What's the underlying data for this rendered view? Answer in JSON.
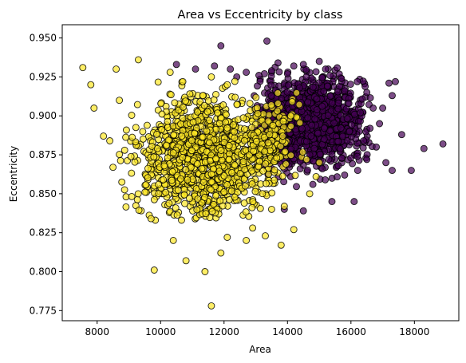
{
  "chart_data": {
    "type": "scatter",
    "title": "Area vs Eccentricity by class",
    "xlabel": "Area",
    "ylabel": "Eccentricity",
    "xlim": [
      6900,
      19400
    ],
    "ylim": [
      0.7685,
      0.9585
    ],
    "xticks": [
      8000,
      10000,
      12000,
      14000,
      16000,
      18000
    ],
    "yticks": [
      0.775,
      0.8,
      0.825,
      0.85,
      0.875,
      0.9,
      0.925,
      0.95
    ],
    "grid": false,
    "legend": "none",
    "series": [
      {
        "color": "#440154",
        "edge_color": "#000000",
        "opacity": 0.7,
        "draw_order": 1,
        "points": [
          [
            13350,
            0.948
          ],
          [
            11900,
            0.945
          ],
          [
            13700,
            0.934
          ],
          [
            14500,
            0.933
          ],
          [
            15000,
            0.935
          ],
          [
            17200,
            0.921
          ],
          [
            17400,
            0.922
          ],
          [
            17300,
            0.913
          ],
          [
            17600,
            0.888
          ],
          [
            17100,
            0.87
          ],
          [
            17300,
            0.865
          ],
          [
            17900,
            0.865
          ],
          [
            18300,
            0.879
          ],
          [
            18900,
            0.882
          ],
          [
            16100,
            0.845
          ],
          [
            15400,
            0.845
          ],
          [
            14500,
            0.839
          ],
          [
            13900,
            0.84
          ],
          [
            15800,
            0.862
          ],
          [
            16400,
            0.884
          ],
          [
            16700,
            0.905
          ],
          [
            16500,
            0.915
          ],
          [
            16200,
            0.922
          ],
          [
            15700,
            0.924
          ],
          [
            15200,
            0.93
          ],
          [
            14200,
            0.932
          ],
          [
            14000,
            0.927
          ],
          [
            13500,
            0.929
          ],
          [
            13100,
            0.926
          ],
          [
            12700,
            0.928
          ],
          [
            12400,
            0.925
          ],
          [
            12200,
            0.93
          ],
          [
            11700,
            0.932
          ],
          [
            11100,
            0.93
          ],
          [
            10500,
            0.933
          ],
          [
            13900,
            0.866
          ],
          [
            14100,
            0.861
          ],
          [
            14400,
            0.866
          ],
          [
            14800,
            0.856
          ],
          [
            15100,
            0.866
          ],
          [
            15600,
            0.868
          ],
          [
            15300,
            0.872
          ],
          [
            14700,
            0.875
          ],
          [
            16900,
            0.895
          ],
          [
            17000,
            0.905
          ],
          [
            16600,
            0.892
          ],
          [
            16300,
            0.902
          ],
          [
            16800,
            0.88
          ],
          [
            16500,
            0.872
          ],
          [
            16200,
            0.874
          ]
        ]
      },
      {
        "color": "#fde725",
        "edge_color": "#000000",
        "opacity": 0.7,
        "draw_order": 2,
        "points": [
          [
            7550,
            0.931
          ],
          [
            7800,
            0.92
          ],
          [
            7900,
            0.905
          ],
          [
            8200,
            0.887
          ],
          [
            8400,
            0.884
          ],
          [
            8500,
            0.867
          ],
          [
            8600,
            0.93
          ],
          [
            8700,
            0.91
          ],
          [
            9300,
            0.936
          ],
          [
            9700,
            0.834
          ],
          [
            9800,
            0.801
          ],
          [
            10400,
            0.82
          ],
          [
            10800,
            0.807
          ],
          [
            11400,
            0.8
          ],
          [
            11600,
            0.778
          ],
          [
            11900,
            0.812
          ],
          [
            12100,
            0.822
          ],
          [
            12700,
            0.82
          ],
          [
            12900,
            0.828
          ],
          [
            13300,
            0.823
          ],
          [
            13800,
            0.817
          ],
          [
            14200,
            0.827
          ],
          [
            13500,
            0.84
          ],
          [
            13900,
            0.842
          ],
          [
            14700,
            0.85
          ],
          [
            14600,
            0.872
          ],
          [
            14900,
            0.861
          ],
          [
            15000,
            0.87
          ],
          [
            14100,
            0.9
          ],
          [
            13700,
            0.908
          ],
          [
            12100,
            0.92
          ],
          [
            11600,
            0.925
          ],
          [
            10300,
            0.928
          ],
          [
            10700,
            0.922
          ]
        ]
      }
    ],
    "clusters": [
      {
        "series_index": 1,
        "count": 1100,
        "x_range": [
          8700,
          13700
        ],
        "y_range": [
          0.833,
          0.925
        ],
        "center": [
          11300,
          0.873
        ],
        "spread": [
          1050,
          0.019
        ]
      },
      {
        "series_index": 0,
        "count": 1300,
        "x_range": [
          12900,
          16700
        ],
        "y_range": [
          0.852,
          0.932
        ],
        "center": [
          14700,
          0.897
        ],
        "spread": [
          850,
          0.014
        ]
      },
      {
        "series_index": 1,
        "count": 200,
        "x_range": [
          12600,
          14800
        ],
        "y_range": [
          0.84,
          0.915
        ],
        "center": [
          13300,
          0.884
        ],
        "spread": [
          450,
          0.015
        ]
      }
    ]
  }
}
